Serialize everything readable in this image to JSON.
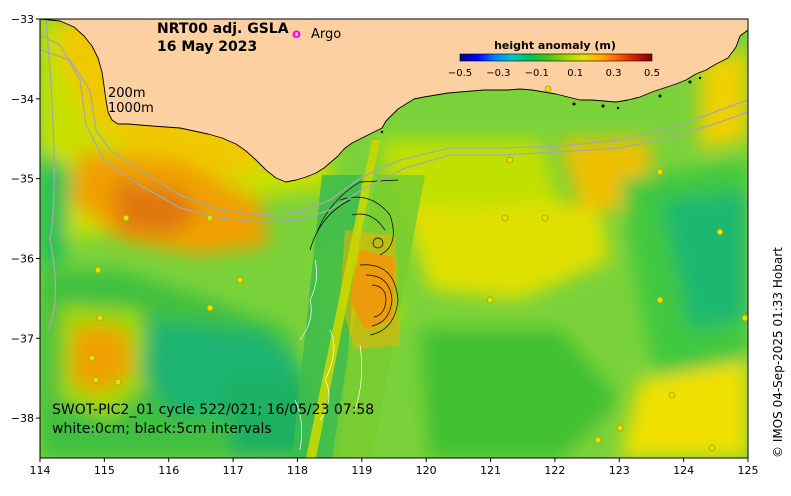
{
  "title": {
    "product": "NRT00 adj. GSLA",
    "date": "16 May 2023"
  },
  "legend": {
    "argo_symbol": "o",
    "argo_label": "Argo",
    "argo_color": "#ff00ff"
  },
  "isobaths": {
    "label_200": "200m",
    "label_1000": "1000m"
  },
  "colorbar": {
    "title": "height anomaly (m)",
    "tick_labels": [
      "−0.5",
      "−0.3",
      "−0.1",
      "0.1",
      "0.3",
      "0.5"
    ],
    "tick_values": [
      -0.5,
      -0.3,
      -0.1,
      0.1,
      0.3,
      0.5
    ],
    "range": [
      -0.5,
      0.5
    ],
    "stops": [
      "#00007f",
      "#0000ff",
      "#0080ff",
      "#00c8c8",
      "#00c060",
      "#40c020",
      "#a0d800",
      "#e0e000",
      "#ffb000",
      "#ff6000",
      "#cc2000",
      "#7f0000"
    ]
  },
  "axes": {
    "x_ticks": [
      "114",
      "115",
      "116",
      "117",
      "118",
      "119",
      "120",
      "121",
      "122",
      "123",
      "124",
      "125"
    ],
    "x_values": [
      114,
      115,
      116,
      117,
      118,
      119,
      120,
      121,
      122,
      123,
      124,
      125
    ],
    "y_ticks": [
      "−33",
      "−34",
      "−35",
      "−36",
      "−37",
      "−38"
    ],
    "y_values": [
      -33,
      -34,
      -35,
      -36,
      -37,
      -38
    ],
    "lon_range": [
      114,
      125
    ],
    "lat_range": [
      -38.5,
      -33
    ]
  },
  "swath_caption": {
    "line1": "SWOT-PIC2_01 cycle 522/021; 16/05/23 07:58",
    "line2": "white:0cm; black:5cm intervals"
  },
  "credit": "© IMOS 04-Sep-2025 01:33 Hobart",
  "colors": {
    "land": "#fcd0a0",
    "coast": "#000000",
    "isobath": "#a8a8a8"
  }
}
